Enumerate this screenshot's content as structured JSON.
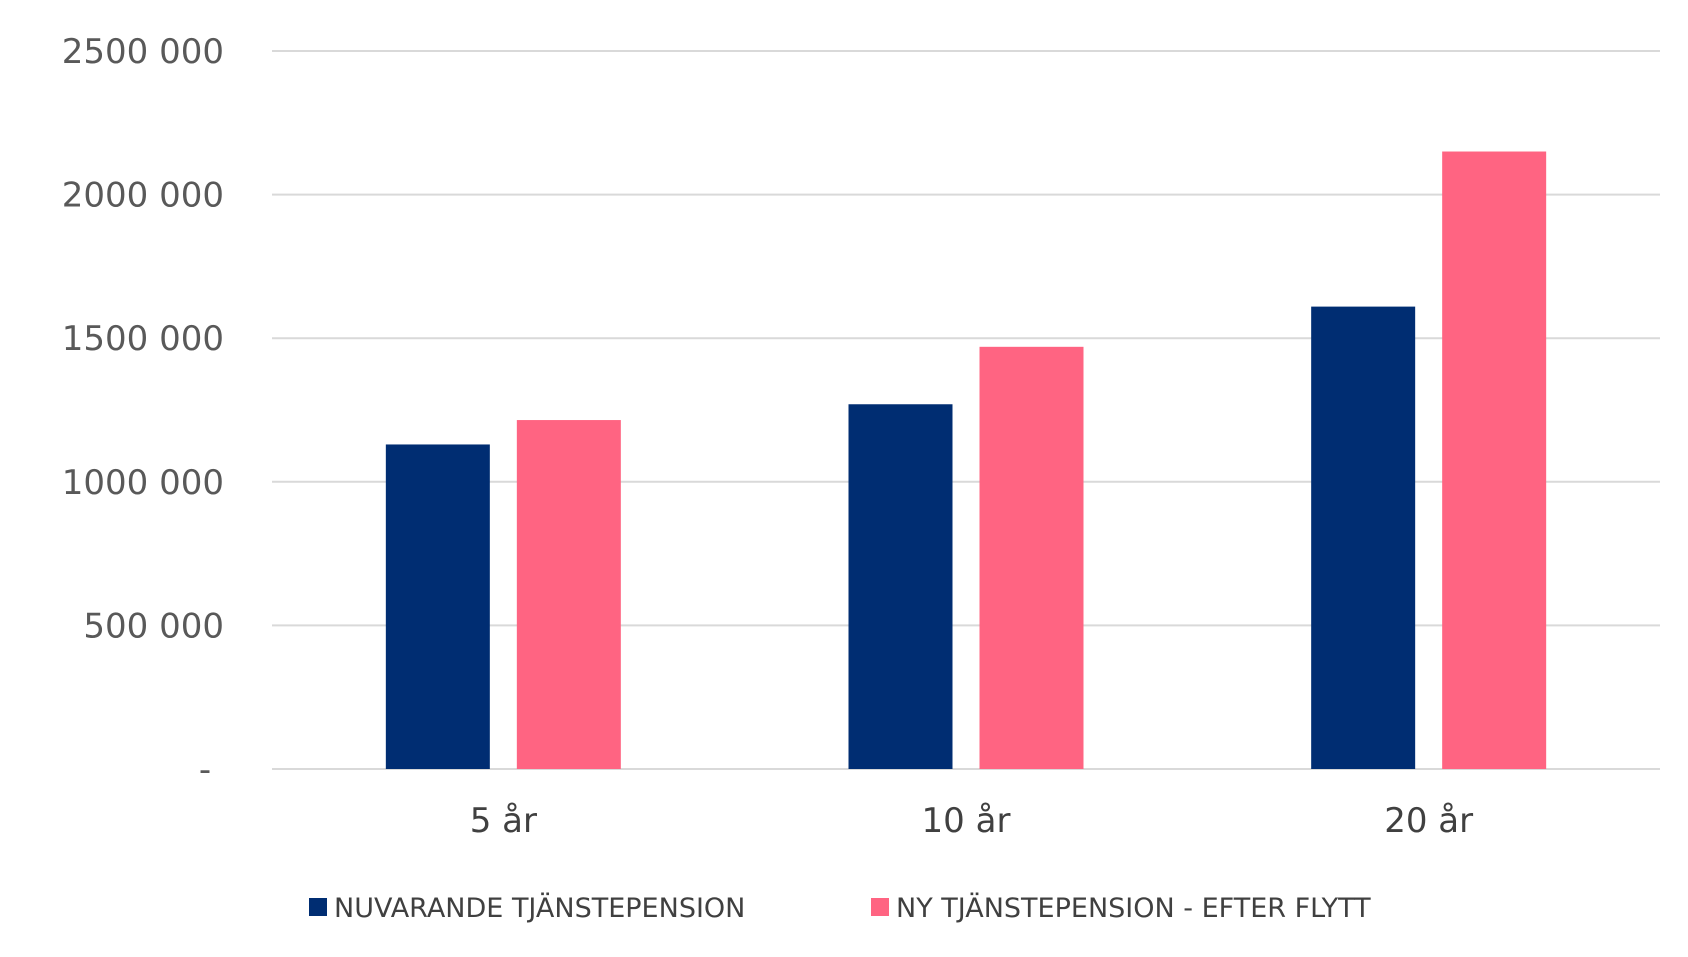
{
  "chart_data": {
    "type": "bar",
    "categories": [
      "5 år",
      "10 år",
      "20 år"
    ],
    "series": [
      {
        "name": "NUVARANDE TJÄNSTEPENSION",
        "color": "#002D72",
        "values": [
          1130000,
          1270000,
          1610000
        ]
      },
      {
        "name": "NY TJÄNSTEPENSION - EFTER FLYTT",
        "color": "#FF6482",
        "values": [
          1215000,
          1470000,
          2150000
        ]
      }
    ],
    "yticks": [
      0,
      500000,
      1000000,
      1500000,
      2000000,
      2500000
    ],
    "ytick_labels": [
      "-",
      "500 000",
      "1000 000",
      "1500 000",
      "2000 000",
      "2500 000"
    ],
    "ylim": [
      0,
      2500000
    ],
    "grid": true,
    "legend_position": "bottom",
    "gridline_color": "#D9D9D9"
  }
}
